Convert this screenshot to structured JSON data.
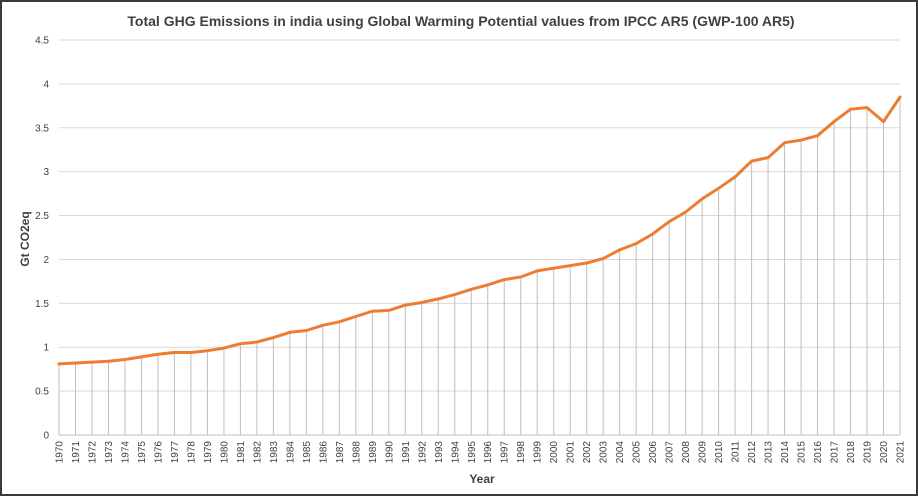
{
  "chart_data": {
    "type": "line",
    "title": "Total GHG Emissions in india using Global Warming Potential values from IPCC AR5 (GWP-100 AR5)",
    "xlabel": "Year",
    "ylabel": "Gt CO2eq",
    "ylim": [
      0,
      4.5
    ],
    "yticks": [
      "0",
      "0.5",
      "1",
      "1.5",
      "2",
      "2.5",
      "3",
      "3.5",
      "4",
      "4.5"
    ],
    "grid": "horizontal gridlines",
    "drop_lines": true,
    "categories": [
      "1970",
      "1971",
      "1972",
      "1973",
      "1974",
      "1975",
      "1976",
      "1977",
      "1978",
      "1979",
      "1980",
      "1981",
      "1982",
      "1983",
      "1984",
      "1985",
      "1986",
      "1987",
      "1988",
      "1989",
      "1990",
      "1991",
      "1992",
      "1993",
      "1994",
      "1995",
      "1996",
      "1997",
      "1998",
      "1999",
      "2000",
      "2001",
      "2002",
      "2003",
      "2004",
      "2005",
      "2006",
      "2007",
      "2008",
      "2009",
      "2010",
      "2011",
      "2012",
      "2013",
      "2014",
      "2015",
      "2016",
      "2017",
      "2018",
      "2019",
      "2020",
      "2021"
    ],
    "series": [
      {
        "color": "#ED7D31",
        "values": [
          0.81,
          0.82,
          0.83,
          0.84,
          0.86,
          0.89,
          0.92,
          0.94,
          0.94,
          0.96,
          0.99,
          1.04,
          1.06,
          1.11,
          1.17,
          1.19,
          1.25,
          1.29,
          1.35,
          1.41,
          1.42,
          1.48,
          1.51,
          1.55,
          1.6,
          1.66,
          1.71,
          1.77,
          1.8,
          1.87,
          1.9,
          1.93,
          1.96,
          2.01,
          2.11,
          2.18,
          2.29,
          2.43,
          2.54,
          2.69,
          2.81,
          2.94,
          3.12,
          3.16,
          3.33,
          3.36,
          3.41,
          3.57,
          3.71,
          3.73,
          3.57,
          3.85
        ]
      }
    ]
  }
}
